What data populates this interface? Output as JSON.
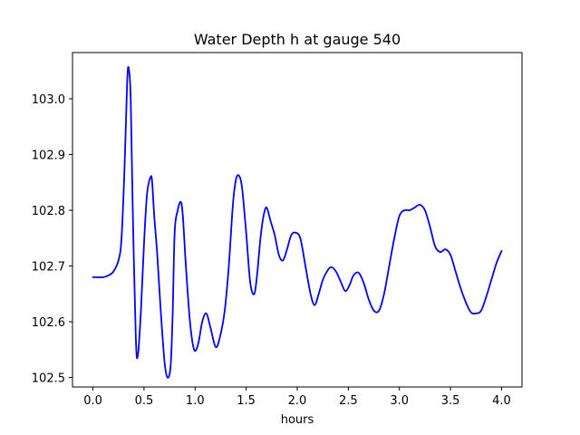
{
  "chart_data": {
    "type": "line",
    "title": "Water Depth h at gauge 540",
    "xlabel": "hours",
    "ylabel": "",
    "xlim": [
      -0.2,
      4.2
    ],
    "ylim": [
      102.483,
      103.083
    ],
    "xticks": [
      0.0,
      0.5,
      1.0,
      1.5,
      2.0,
      2.5,
      3.0,
      3.5,
      4.0
    ],
    "xtick_labels": [
      "0.0",
      "0.5",
      "1.0",
      "1.5",
      "2.0",
      "2.5",
      "3.0",
      "3.5",
      "4.0"
    ],
    "yticks": [
      102.5,
      102.6,
      102.7,
      102.8,
      102.9,
      103.0
    ],
    "ytick_labels": [
      "102.5",
      "102.6",
      "102.7",
      "102.8",
      "102.9",
      "103.0"
    ],
    "grid": false,
    "series": [
      {
        "color": "#0000ff",
        "x": [
          0.0,
          0.1,
          0.15,
          0.2,
          0.25,
          0.28,
          0.31,
          0.335,
          0.35,
          0.37,
          0.39,
          0.42,
          0.44,
          0.47,
          0.5,
          0.53,
          0.565,
          0.58,
          0.6,
          0.63,
          0.66,
          0.7,
          0.73,
          0.76,
          0.78,
          0.8,
          0.83,
          0.86,
          0.88,
          0.91,
          0.95,
          0.99,
          1.03,
          1.07,
          1.11,
          1.15,
          1.2,
          1.24,
          1.29,
          1.33,
          1.37,
          1.4,
          1.43,
          1.46,
          1.5,
          1.54,
          1.58,
          1.61,
          1.64,
          1.67,
          1.7,
          1.74,
          1.78,
          1.82,
          1.86,
          1.9,
          1.94,
          1.98,
          2.03,
          2.08,
          2.13,
          2.17,
          2.21,
          2.25,
          2.29,
          2.33,
          2.38,
          2.43,
          2.47,
          2.51,
          2.55,
          2.6,
          2.65,
          2.7,
          2.75,
          2.8,
          2.85,
          2.9,
          2.95,
          3.0,
          3.05,
          3.1,
          3.15,
          3.2,
          3.25,
          3.3,
          3.35,
          3.4,
          3.45,
          3.5,
          3.55,
          3.6,
          3.65,
          3.7,
          3.75,
          3.8,
          3.85,
          3.9,
          3.95,
          4.0
        ],
        "y": [
          102.68,
          102.68,
          102.683,
          102.69,
          102.71,
          102.75,
          102.88,
          103.03,
          103.055,
          103.0,
          102.8,
          102.57,
          102.54,
          102.62,
          102.74,
          102.83,
          102.86,
          102.85,
          102.79,
          102.72,
          102.63,
          102.53,
          102.5,
          102.52,
          102.61,
          102.76,
          102.8,
          102.815,
          102.79,
          102.7,
          102.6,
          102.55,
          102.56,
          102.6,
          102.615,
          102.59,
          102.555,
          102.57,
          102.62,
          102.7,
          102.81,
          102.855,
          102.862,
          102.84,
          102.76,
          102.67,
          102.65,
          102.69,
          102.75,
          102.79,
          102.805,
          102.78,
          102.755,
          102.72,
          102.71,
          102.73,
          102.755,
          102.76,
          102.75,
          102.7,
          102.65,
          102.63,
          102.65,
          102.675,
          102.69,
          102.698,
          102.69,
          102.67,
          102.655,
          102.665,
          102.683,
          102.688,
          102.67,
          102.64,
          102.62,
          102.62,
          102.65,
          102.7,
          102.75,
          102.79,
          102.8,
          102.8,
          102.805,
          102.81,
          102.8,
          102.77,
          102.735,
          102.725,
          102.73,
          102.72,
          102.69,
          102.66,
          102.635,
          102.617,
          102.615,
          102.62,
          102.645,
          102.675,
          102.705,
          102.727
        ]
      }
    ]
  }
}
